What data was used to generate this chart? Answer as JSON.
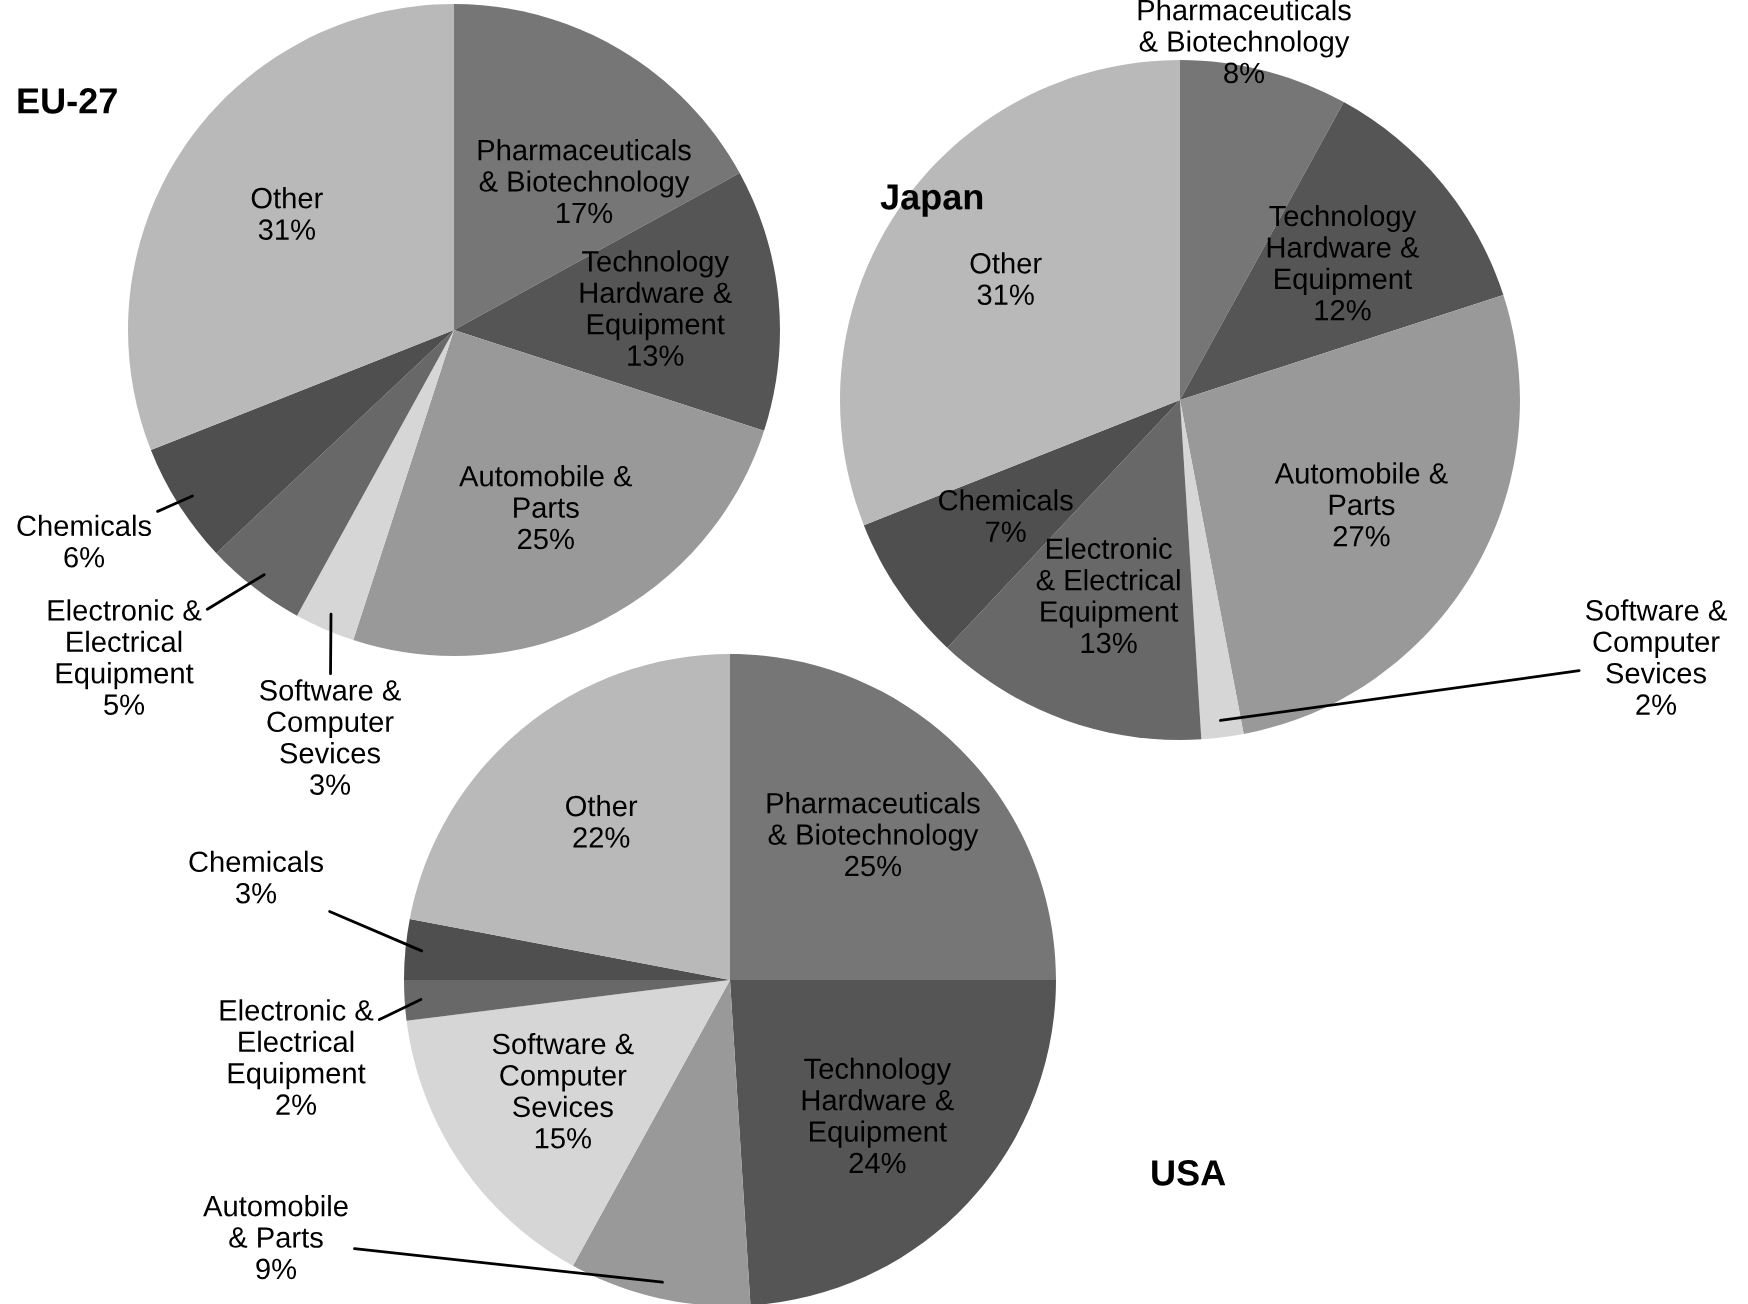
{
  "chart_data": [
    {
      "type": "pie",
      "title": "EU-27",
      "categories": [
        "Pharmaceuticals\n& Biotechnology",
        "Technology\nHardware &\nEquipment",
        "Automobile &\nParts",
        "Software &\nComputer\nSevices",
        "Electronic &\nElectrical\nEquipment",
        "Chemicals",
        "Other"
      ],
      "values": [
        17,
        13,
        25,
        3,
        5,
        6,
        31
      ],
      "value_labels": [
        "17%",
        "13%",
        "25%",
        "3%",
        "5%",
        "6%",
        "31%"
      ],
      "colors": [
        "#767676",
        "#555555",
        "#999999",
        "#d6d6d6",
        "#686868",
        "#4f4f4f",
        "#b9b9b9"
      ]
    },
    {
      "type": "pie",
      "title": "Japan",
      "categories": [
        "Pharmaceuticals\n& Biotechnology",
        "Technology\nHardware &\nEquipment",
        "Automobile &\nParts",
        "Software &\nComputer\nSevices",
        "Electronic\n& Electrical\nEquipment",
        "Chemicals",
        "Other"
      ],
      "values": [
        8,
        12,
        27,
        2,
        13,
        7,
        31
      ],
      "value_labels": [
        "8%",
        "12%",
        "27%",
        "2%",
        "13%",
        "7%",
        "31%"
      ],
      "colors": [
        "#767676",
        "#555555",
        "#999999",
        "#d6d6d6",
        "#686868",
        "#4f4f4f",
        "#b9b9b9"
      ]
    },
    {
      "type": "pie",
      "title": "USA",
      "categories": [
        "Pharmaceuticals\n& Biotechnology",
        "Technology\nHardware &\nEquipment",
        "Automobile\n& Parts",
        "Software &\nComputer\nSevices",
        "Electronic &\nElectrical\nEquipment",
        "Chemicals",
        "Other"
      ],
      "values": [
        25,
        24,
        9,
        15,
        2,
        3,
        22
      ],
      "value_labels": [
        "25%",
        "24%",
        "9%",
        "15%",
        "2%",
        "3%",
        "22%"
      ],
      "colors": [
        "#767676",
        "#555555",
        "#999999",
        "#d6d6d6",
        "#686868",
        "#4f4f4f",
        "#b9b9b9"
      ]
    }
  ]
}
